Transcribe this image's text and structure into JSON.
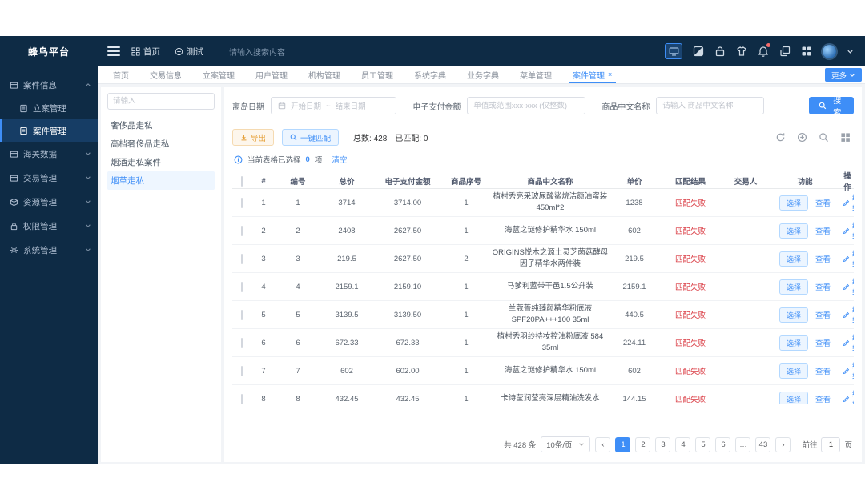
{
  "colors": {
    "accent": "#3e8ef7",
    "danger": "#d9363e",
    "warning": "#e6a23c",
    "navy": "#0e2b45"
  },
  "brand": {
    "logo_text": "蜂鸟平台"
  },
  "topbar": {
    "home_label": "首页",
    "test_label": "测试",
    "search_placeholder": "请输入搜索内容"
  },
  "sidebar": {
    "items": [
      {
        "label": "案件信息",
        "icon": "folder",
        "state": "expanded",
        "children": [
          {
            "label": "立案管理",
            "active": false
          },
          {
            "label": "案件管理",
            "active": true
          }
        ]
      },
      {
        "label": "海关数据",
        "icon": "folder",
        "state": "collapsed"
      },
      {
        "label": "交易管理",
        "icon": "folder",
        "state": "collapsed"
      },
      {
        "label": "资源管理",
        "icon": "cube",
        "state": "collapsed"
      },
      {
        "label": "权限管理",
        "icon": "lock",
        "state": "collapsed"
      },
      {
        "label": "系统管理",
        "icon": "gear",
        "state": "collapsed"
      }
    ]
  },
  "tabbar": {
    "tabs": [
      {
        "label": "首页"
      },
      {
        "label": "交易信息"
      },
      {
        "label": "立案管理"
      },
      {
        "label": "用户管理"
      },
      {
        "label": "机构管理"
      },
      {
        "label": "员工管理"
      },
      {
        "label": "系统字典"
      },
      {
        "label": "业务字典"
      },
      {
        "label": "菜单管理"
      },
      {
        "label": "案件管理",
        "active": true,
        "closable": true
      }
    ],
    "more_label": "更多"
  },
  "categories": {
    "search_placeholder": "请输入",
    "items": [
      {
        "label": "奢侈品走私"
      },
      {
        "label": "高档奢侈品走私"
      },
      {
        "label": "烟酒走私案件"
      },
      {
        "label": "烟草走私",
        "active": true
      }
    ]
  },
  "filters": {
    "date_label": "离岛日期",
    "date_start_placeholder": "开始日期",
    "date_separator": "~",
    "date_end_placeholder": "结束日期",
    "epay_label": "电子支付金额",
    "epay_placeholder": "单值或范围xxx-xxx (仅整数)",
    "name_label": "商品中文名称",
    "name_placeholder": "请输入 商品中文名称",
    "search_button": "搜索"
  },
  "toolbar": {
    "export_label": "导出",
    "match_label": "一键匹配",
    "total_label": "总数:",
    "total_value": "428",
    "matched_label": "已匹配:",
    "matched_value": "0"
  },
  "selection_bar": {
    "prefix": "当前表格已选择",
    "count": "0",
    "suffix": "项",
    "clear_label": "清空"
  },
  "table": {
    "headers": [
      "#",
      "编号",
      "总价",
      "电子支付金额",
      "商品序号",
      "商品中文名称",
      "单价",
      "匹配结果",
      "交易人",
      "功能",
      "操作"
    ],
    "row_actions": {
      "select_label": "选择",
      "view_label": "查看",
      "edit_label": "编辑"
    },
    "rows": [
      {
        "idx": "1",
        "code": "1",
        "total": "3714",
        "epay": "3714.00",
        "seq": "1",
        "name": "植村秀亮采玻尿酸鲨烷洁颜油蜜装 450ml*2",
        "unit": "1238",
        "match": "匹配失败",
        "trader": ""
      },
      {
        "idx": "2",
        "code": "2",
        "total": "2408",
        "epay": "2627.50",
        "seq": "1",
        "name": "海蓝之谜修护精华水 150ml",
        "unit": "602",
        "match": "匹配失败",
        "trader": ""
      },
      {
        "idx": "3",
        "code": "3",
        "total": "219.5",
        "epay": "2627.50",
        "seq": "2",
        "name": "ORIGINS悦木之源土灵芝菌菇酵母因子精华水两件装",
        "unit": "219.5",
        "match": "匹配失败",
        "trader": ""
      },
      {
        "idx": "4",
        "code": "4",
        "total": "2159.1",
        "epay": "2159.10",
        "seq": "1",
        "name": "马爹利蓝带干邑1.5公升装",
        "unit": "2159.1",
        "match": "匹配失败",
        "trader": ""
      },
      {
        "idx": "5",
        "code": "5",
        "total": "3139.5",
        "epay": "3139.50",
        "seq": "1",
        "name": "兰蔻菁纯臻颜精华粉底液SPF20PA+++100 35ml",
        "unit": "440.5",
        "match": "匹配失败",
        "trader": ""
      },
      {
        "idx": "6",
        "code": "6",
        "total": "672.33",
        "epay": "672.33",
        "seq": "1",
        "name": "植村秀羽纱持妆控油粉底液 584 35ml",
        "unit": "224.11",
        "match": "匹配失败",
        "trader": ""
      },
      {
        "idx": "7",
        "code": "7",
        "total": "602",
        "epay": "602.00",
        "seq": "1",
        "name": "海蓝之谜修护精华水 150ml",
        "unit": "602",
        "match": "匹配失败",
        "trader": ""
      },
      {
        "idx": "8",
        "code": "8",
        "total": "432.45",
        "epay": "432.45",
        "seq": "1",
        "name": "卡诗莹润莹亮深层精油洗发水",
        "unit": "144.15",
        "match": "匹配失败",
        "trader": ""
      }
    ]
  },
  "pagination": {
    "total_text": "共 428 条",
    "page_size": "10条/页",
    "pages": [
      "1",
      "2",
      "3",
      "4",
      "5",
      "6",
      "…",
      "43"
    ],
    "active_page": "1",
    "goto_prefix": "前往",
    "goto_value": "1",
    "goto_suffix": "页"
  }
}
